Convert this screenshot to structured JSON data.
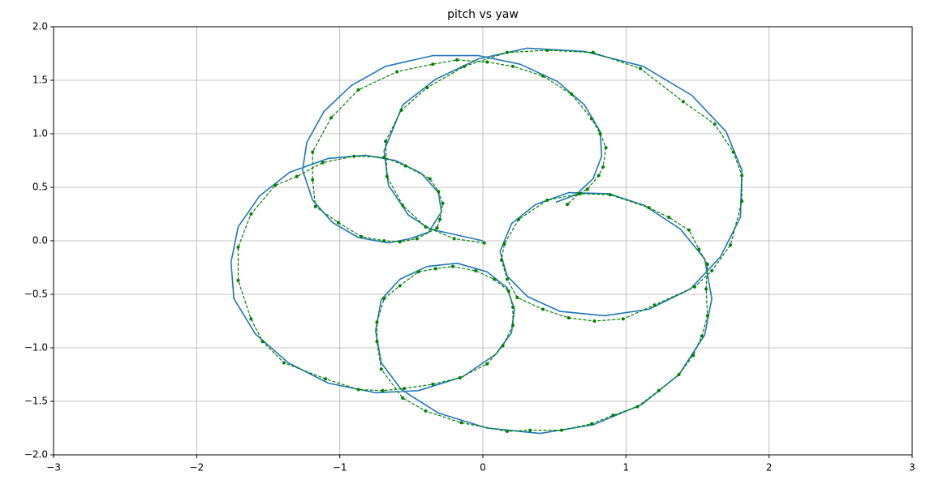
{
  "chart_data": {
    "type": "line",
    "title": "pitch vs yaw",
    "xlim": [
      -3,
      3
    ],
    "xticks": [
      {
        "value": -3,
        "label": "−3"
      },
      {
        "value": -2,
        "label": "−2"
      },
      {
        "value": -1,
        "label": "−1"
      },
      0,
      1,
      2,
      3
    ],
    "ylim": [
      -2,
      2
    ],
    "yticks": [
      {
        "value": -2,
        "label": "−2.0"
      },
      {
        "value": -1.5,
        "label": "−1.5"
      },
      {
        "value": -1,
        "label": "−1.0"
      },
      {
        "value": -0.5,
        "label": "−0.5"
      },
      {
        "value": 0,
        "label": "0.0"
      },
      0.5,
      {
        "value": 1,
        "label": "1.0"
      },
      1.5,
      {
        "value": 2,
        "label": "2.0"
      }
    ],
    "grid": true,
    "series": [
      {
        "color": "#1f77b4",
        "style": "solid",
        "markers": false,
        "x": [
          0,
          -0.37,
          -0.52,
          -0.66,
          -0.69,
          -0.56,
          -0.33,
          -0.03,
          0.31,
          0.71,
          1.12,
          1.46,
          1.7,
          1.81,
          1.8,
          1.66,
          1.45,
          1.16,
          0.85,
          0.54,
          0.31,
          0.17,
          0.12,
          0.2,
          0.37,
          0.6,
          0.88,
          1.13,
          1.38,
          1.55,
          1.6,
          1.55,
          1.37,
          1.11,
          0.77,
          0.4,
          0.03,
          -0.31,
          -0.57,
          -0.71,
          -0.75,
          -0.71,
          -0.58,
          -0.39,
          -0.18,
          0.03,
          0.17,
          0.22,
          0.2,
          0.09,
          -0.14,
          -0.45,
          -0.75,
          -1.08,
          -1.36,
          -1.59,
          -1.74,
          -1.76,
          -1.71,
          -1.56,
          -1.35,
          -1.08,
          -0.82,
          -0.61,
          -0.43,
          -0.31,
          -0.29,
          -0.38,
          -0.51,
          -0.66,
          -0.87,
          -1.05,
          -1.19,
          -1.26,
          -1.23,
          -1.11,
          -0.92,
          -0.68,
          -0.35,
          -0.03,
          0.26,
          0.52,
          0.71,
          0.82,
          0.83,
          0.77,
          0.65,
          0.51
        ],
        "values": [
          0,
          0.11,
          0.24,
          0.52,
          0.84,
          1.27,
          1.51,
          1.7,
          1.8,
          1.77,
          1.63,
          1.36,
          1.02,
          0.66,
          0.22,
          -0.15,
          -0.45,
          -0.64,
          -0.7,
          -0.66,
          -0.52,
          -0.33,
          -0.1,
          0.16,
          0.34,
          0.45,
          0.44,
          0.33,
          0.11,
          -0.17,
          -0.54,
          -0.88,
          -1.25,
          -1.53,
          -1.72,
          -1.8,
          -1.75,
          -1.61,
          -1.39,
          -1.14,
          -0.84,
          -0.55,
          -0.36,
          -0.24,
          -0.21,
          -0.29,
          -0.44,
          -0.64,
          -0.86,
          -1.06,
          -1.27,
          -1.4,
          -1.42,
          -1.33,
          -1.14,
          -0.87,
          -0.54,
          -0.2,
          0.13,
          0.42,
          0.64,
          0.77,
          0.8,
          0.75,
          0.63,
          0.45,
          0.27,
          0.08,
          0.02,
          -0.02,
          0.03,
          0.17,
          0.38,
          0.66,
          0.92,
          1.21,
          1.45,
          1.63,
          1.73,
          1.73,
          1.65,
          1.49,
          1.27,
          1.02,
          0.79,
          0.58,
          0.43,
          0.36
        ]
      },
      {
        "color": "#008000",
        "style": "dashed",
        "markers": true,
        "x": [
          0.01,
          -0.2,
          -0.4,
          -0.56,
          -0.67,
          -0.68,
          -0.57,
          -0.39,
          -0.13,
          0.17,
          0.45,
          0.77,
          1.1,
          1.4,
          1.62,
          1.75,
          1.81,
          1.81,
          1.73,
          1.6,
          1.48,
          1.2,
          0.98,
          0.78,
          0.6,
          0.42,
          0.24,
          0.17,
          0.13,
          0.15,
          0.25,
          0.45,
          0.68,
          0.89,
          1.16,
          1.3,
          1.44,
          1.51,
          1.57,
          1.56,
          1.57,
          1.53,
          1.47,
          1.37,
          1.23,
          1.08,
          0.91,
          0.76,
          0.55,
          0.33,
          0.17,
          -0.15,
          -0.4,
          -0.56,
          -0.71,
          -0.74,
          -0.74,
          -0.69,
          -0.58,
          -0.45,
          -0.33,
          -0.21,
          -0.05,
          0.08,
          0.18,
          0.21,
          0.21,
          0.14,
          0.03,
          -0.16,
          -0.35,
          -0.55,
          -0.7,
          -0.87,
          -1.1,
          -1.39,
          -1.54,
          -1.62,
          -1.71,
          -1.71,
          -1.62,
          -1.45,
          -1.3,
          -1.12,
          -0.9,
          -0.69,
          -0.54,
          -0.37,
          -0.31,
          -0.28,
          -0.3,
          -0.32,
          -0.46,
          -0.58,
          -0.69,
          -0.85,
          -1.01,
          -1.17,
          -1.19,
          -1.19,
          -1.06,
          -0.87,
          -0.6,
          -0.35,
          -0.18,
          0.03,
          0.21,
          0.42,
          0.62,
          0.76,
          0.82,
          0.86,
          0.84,
          0.81,
          0.73,
          0.67,
          0.59
        ],
        "values": [
          -0.02,
          0.02,
          0.13,
          0.33,
          0.6,
          0.93,
          1.22,
          1.43,
          1.63,
          1.76,
          1.78,
          1.76,
          1.61,
          1.3,
          1.09,
          0.83,
          0.61,
          0.37,
          -0.04,
          -0.28,
          -0.43,
          -0.6,
          -0.73,
          -0.75,
          -0.72,
          -0.64,
          -0.53,
          -0.36,
          -0.18,
          -0.03,
          0.2,
          0.38,
          0.44,
          0.43,
          0.31,
          0.22,
          0.1,
          -0.08,
          -0.22,
          -0.45,
          -0.7,
          -0.89,
          -1.07,
          -1.25,
          -1.4,
          -1.55,
          -1.63,
          -1.71,
          -1.77,
          -1.77,
          -1.78,
          -1.7,
          -1.59,
          -1.47,
          -1.2,
          -0.94,
          -0.76,
          -0.54,
          -0.42,
          -0.29,
          -0.26,
          -0.24,
          -0.28,
          -0.36,
          -0.47,
          -0.62,
          -0.79,
          -0.98,
          -1.15,
          -1.28,
          -1.34,
          -1.38,
          -1.4,
          -1.39,
          -1.29,
          -1.14,
          -0.94,
          -0.73,
          -0.37,
          -0.06,
          0.25,
          0.52,
          0.6,
          0.73,
          0.79,
          0.78,
          0.7,
          0.58,
          0.46,
          0.35,
          0.2,
          0.12,
          0.02,
          -0.01,
          0,
          0.04,
          0.17,
          0.32,
          0.57,
          0.83,
          1.15,
          1.41,
          1.58,
          1.65,
          1.69,
          1.67,
          1.63,
          1.54,
          1.37,
          1.14,
          1,
          0.87,
          0.69,
          0.61,
          0.48,
          0.44,
          0.34
        ]
      }
    ]
  }
}
